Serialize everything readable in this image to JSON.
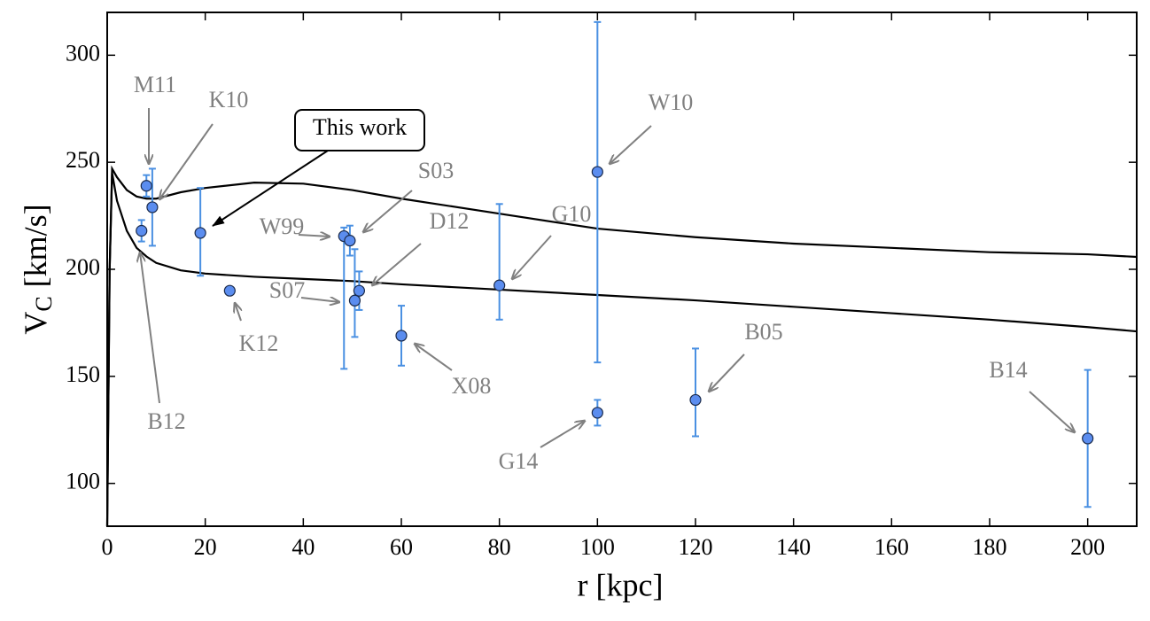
{
  "chart_data": {
    "type": "scatter",
    "xlabel": "r [kpc]",
    "ylabel": {
      "symbol": "V",
      "subscript": "C",
      "unit": "[km/s]"
    },
    "xlim": [
      0,
      210
    ],
    "ylim": [
      80,
      320
    ],
    "xticks": [
      0,
      20,
      40,
      60,
      80,
      100,
      120,
      140,
      160,
      180,
      200
    ],
    "yticks": [
      100,
      150,
      200,
      250,
      300
    ],
    "color": "#5b8def",
    "error_color": "#4a90e2",
    "x": [
      7,
      8,
      9.2,
      19,
      25,
      48.3,
      49.5,
      50.5,
      51.4,
      60,
      80,
      100,
      100,
      120,
      200
    ],
    "y": [
      218,
      239,
      229,
      217,
      190,
      215.5,
      213.4,
      185.4,
      190,
      169,
      192.5,
      245.5,
      133,
      139,
      121
    ],
    "yerr_minus": [
      5,
      5,
      18,
      20,
      0,
      62,
      7,
      17,
      9,
      14,
      16,
      89,
      6,
      17,
      32
    ],
    "yerr_plus": [
      5,
      5,
      18,
      21,
      0,
      4,
      7,
      24,
      9,
      14,
      38,
      70,
      6,
      24,
      32
    ],
    "point_labels": [
      "B12",
      "M11",
      "K10",
      null,
      "K12",
      "W99",
      "S03",
      "S07",
      "D12",
      "X08",
      "G10",
      "W10",
      "G14",
      "B05",
      "B14"
    ],
    "curve_annotation": "This work",
    "curves": [
      {
        "color": "#000000",
        "x": [
          0,
          0.5,
          1,
          2,
          4,
          6,
          8,
          10,
          15,
          20,
          30,
          40,
          50,
          60,
          80,
          100,
          120,
          140,
          160,
          180,
          200,
          210
        ],
        "y": [
          80,
          200,
          247,
          243,
          237,
          234,
          233,
          233,
          236,
          238,
          240.5,
          240,
          237,
          233,
          226,
          219,
          215,
          212,
          210,
          208,
          207,
          205.8
        ]
      },
      {
        "color": "#000000",
        "x": [
          0,
          0.5,
          1,
          2,
          4,
          6,
          8,
          10,
          15,
          20,
          30,
          40,
          50,
          60,
          80,
          100,
          120,
          140,
          160,
          180,
          200,
          210
        ],
        "y": [
          80,
          200,
          245,
          232,
          218,
          210,
          206,
          203,
          199.5,
          198,
          196.5,
          195.5,
          194.5,
          193,
          190.5,
          188,
          185.5,
          182.5,
          179.5,
          176.5,
          173,
          171
        ]
      }
    ]
  }
}
